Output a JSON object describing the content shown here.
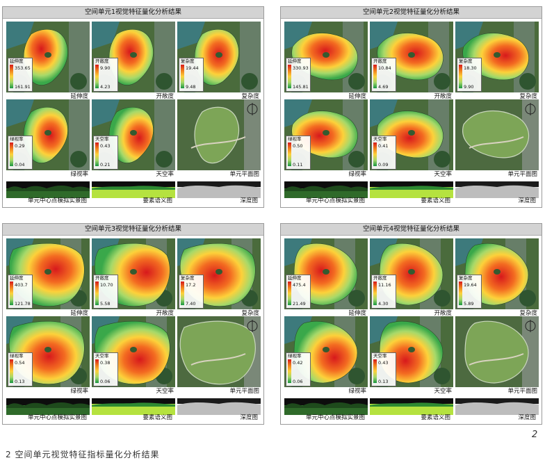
{
  "figure_number": "2",
  "caption": "2 空间单元视觉特征指标量化分析结果",
  "units": [
    {
      "title": "空间单元1视觉特征量化分析结果",
      "maps": [
        {
          "label": "延伸度",
          "legend_title": "延伸度",
          "max": "353.65",
          "min": "161.91",
          "theme": "heat"
        },
        {
          "label": "开敞度",
          "legend_title": "开敞度",
          "max": "9.90",
          "min": "4.23",
          "theme": "heat"
        },
        {
          "label": "复杂度",
          "legend_title": "复杂度",
          "max": "19.44",
          "min": "9.48",
          "theme": "heat"
        },
        {
          "label": "绿视率",
          "legend_title": "绿视率",
          "max": "0.29",
          "min": "0.04",
          "theme": "heat"
        },
        {
          "label": "天空率",
          "legend_title": "天空率",
          "max": "0.43",
          "min": "0.21",
          "theme": "heat"
        },
        {
          "label": "单元平面图",
          "theme": "plan"
        }
      ],
      "strips": [
        "单元中心点模拟实景图",
        "要素语义图",
        "深度图"
      ]
    },
    {
      "title": "空间单元2视觉特征量化分析结果",
      "maps": [
        {
          "label": "延伸度",
          "legend_title": "延伸度",
          "max": "330.93",
          "min": "145.81",
          "theme": "heat"
        },
        {
          "label": "开敞度",
          "legend_title": "开敞度",
          "max": "10.84",
          "min": "4.69",
          "theme": "heat"
        },
        {
          "label": "复杂度",
          "legend_title": "复杂度",
          "max": "18.30",
          "min": "9.90",
          "theme": "heat"
        },
        {
          "label": "绿视率",
          "legend_title": "绿视率",
          "max": "0.50",
          "min": "0.11",
          "theme": "heat"
        },
        {
          "label": "天空率",
          "legend_title": "天空率",
          "max": "0.41",
          "min": "0.09",
          "theme": "heat"
        },
        {
          "label": "单元平面图",
          "theme": "plan"
        }
      ],
      "strips": [
        "单元中心点模拟实景图",
        "要素语义图",
        "深度图"
      ]
    },
    {
      "title": "空间单元3视觉特征量化分析结果",
      "maps": [
        {
          "label": "延伸度",
          "legend_title": "延伸度",
          "max": "403.7",
          "min": "121.78",
          "theme": "heat"
        },
        {
          "label": "开敞度",
          "legend_title": "开敞度",
          "max": "10.70",
          "min": "5.58",
          "theme": "heat"
        },
        {
          "label": "复杂度",
          "legend_title": "复杂度",
          "max": "17.2",
          "min": "7.40",
          "theme": "heat"
        },
        {
          "label": "绿视率",
          "legend_title": "绿视率",
          "max": "0.54",
          "min": "0.13",
          "theme": "heat"
        },
        {
          "label": "天空率",
          "legend_title": "天空率",
          "max": "0.38",
          "min": "0.06",
          "theme": "heat"
        },
        {
          "label": "单元平面图",
          "theme": "plan"
        }
      ],
      "strips": [
        "单元中心点模拟实景图",
        "要素语义图",
        "深度图"
      ]
    },
    {
      "title": "空间单元4视觉特征量化分析结果",
      "maps": [
        {
          "label": "延伸度",
          "legend_title": "延伸度",
          "max": "475.4",
          "min": "21.49",
          "theme": "heat"
        },
        {
          "label": "开敞度",
          "legend_title": "开敞度",
          "max": "11.16",
          "min": "4.30",
          "theme": "heat"
        },
        {
          "label": "复杂度",
          "legend_title": "复杂度",
          "max": "19.64",
          "min": "5.89",
          "theme": "heat"
        },
        {
          "label": "绿视率",
          "legend_title": "绿视率",
          "max": "0.42",
          "min": "0.06",
          "theme": "heat"
        },
        {
          "label": "天空率",
          "legend_title": "天空率",
          "max": "0.43",
          "min": "0.13",
          "theme": "heat"
        },
        {
          "label": "单元平面图",
          "theme": "plan"
        }
      ],
      "strips": [
        "单元中心点模拟实景图",
        "要素语义图",
        "深度图"
      ]
    }
  ]
}
